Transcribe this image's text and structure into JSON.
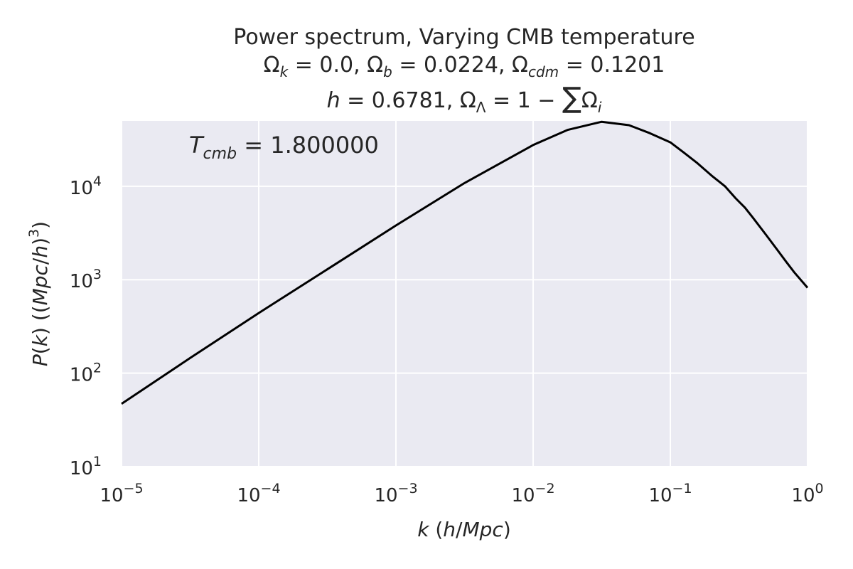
{
  "chart_data": {
    "type": "line",
    "title": "Power spectrum, Varying CMB temperature",
    "subtitle_lines": [
      "Ω_k = 0.0, Ω_b = 0.0224, Ω_cdm = 0.1201",
      "h = 0.6781, Ω_Λ = 1 − ΣΩ_i"
    ],
    "annotation": "T_cmb = 1.800000",
    "xlabel": "k (h/Mpc)",
    "ylabel": "P(k) ((Mpc/h)^3)",
    "xscale": "log",
    "yscale": "log",
    "xlim": [
      1e-05,
      1
    ],
    "ylim": [
      10,
      50000
    ],
    "xticks": [
      {
        "base": "10",
        "exp": "−5"
      },
      {
        "base": "10",
        "exp": "−4"
      },
      {
        "base": "10",
        "exp": "−3"
      },
      {
        "base": "10",
        "exp": "−2"
      },
      {
        "base": "10",
        "exp": "−1"
      },
      {
        "base": "10",
        "exp": "0"
      }
    ],
    "yticks": [
      {
        "base": "10",
        "exp": "1"
      },
      {
        "base": "10",
        "exp": "2"
      },
      {
        "base": "10",
        "exp": "3"
      },
      {
        "base": "10",
        "exp": "4"
      }
    ],
    "grid": true,
    "background": "#eaeaf2",
    "line_color": "#000000",
    "series": [
      {
        "x": [
          1e-05,
          3.16e-05,
          0.0001,
          0.000316,
          0.001,
          0.00316,
          0.01,
          0.0178,
          0.0316,
          0.05,
          0.0708,
          0.1,
          0.126,
          0.158,
          0.2,
          0.25,
          0.3,
          0.35,
          0.4,
          0.5,
          0.6,
          0.7,
          0.8,
          1.0
        ],
        "y": [
          47,
          145,
          440,
          1290,
          3800,
          10800,
          27600,
          40000,
          49000,
          45000,
          37000,
          29500,
          22800,
          17600,
          13000,
          10000,
          7400,
          5900,
          4600,
          3000,
          2100,
          1550,
          1200,
          820
        ]
      }
    ]
  }
}
